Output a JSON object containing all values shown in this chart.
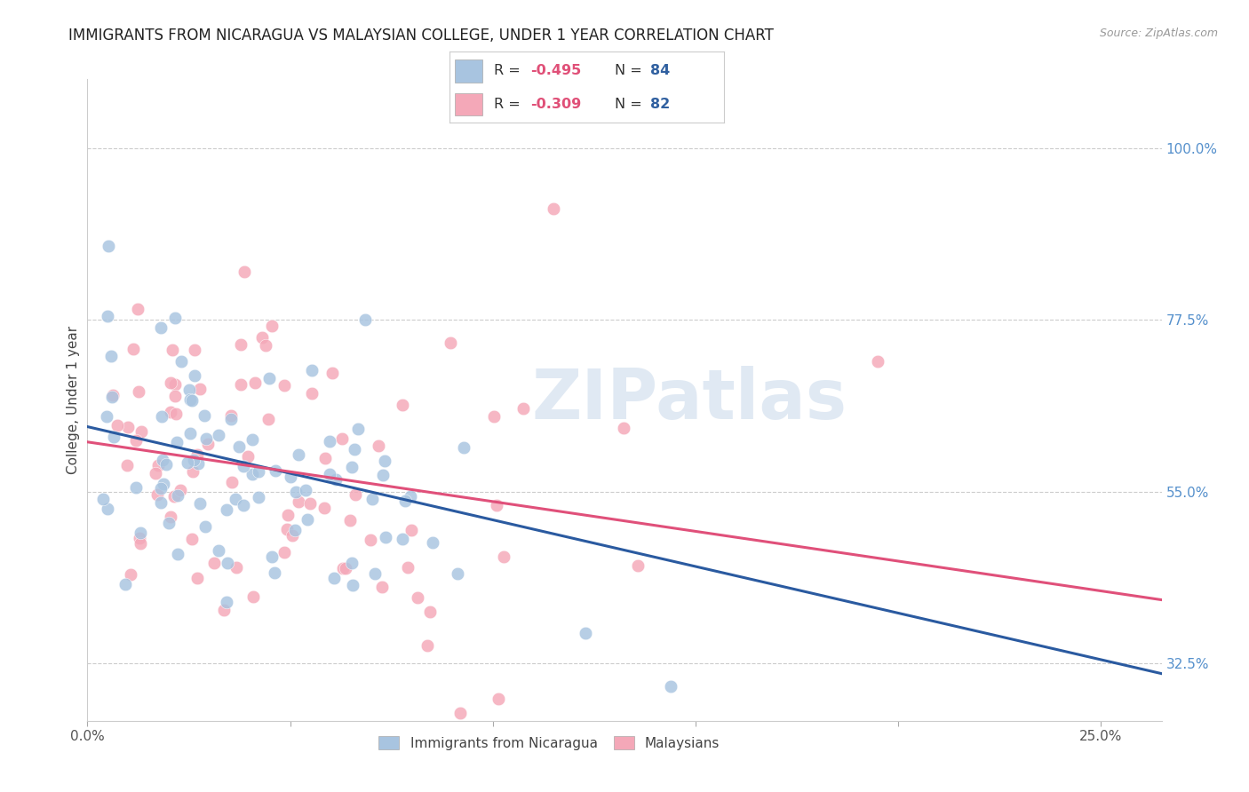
{
  "title": "IMMIGRANTS FROM NICARAGUA VS MALAYSIAN COLLEGE, UNDER 1 YEAR CORRELATION CHART",
  "source": "Source: ZipAtlas.com",
  "ylabel": "College, Under 1 year",
  "y_ticks": [
    0.325,
    0.55,
    0.775,
    1.0
  ],
  "y_tick_labels": [
    "32.5%",
    "55.0%",
    "77.5%",
    "100.0%"
  ],
  "xlim": [
    0.0,
    0.265
  ],
  "ylim": [
    0.25,
    1.09
  ],
  "line1_slope": -1.22,
  "line1_intercept": 0.635,
  "line2_slope": -0.78,
  "line2_intercept": 0.615,
  "series1_color": "#a8c4e0",
  "series2_color": "#f4a8b8",
  "line1_color": "#2a5aa0",
  "line2_color": "#e0507a",
  "legend_label1": "Immigrants from Nicaragua",
  "legend_label2": "Malaysians",
  "watermark": "ZIPatlas",
  "background_color": "#ffffff",
  "grid_color": "#cccccc",
  "title_color": "#222222",
  "right_axis_color": "#5590cc"
}
